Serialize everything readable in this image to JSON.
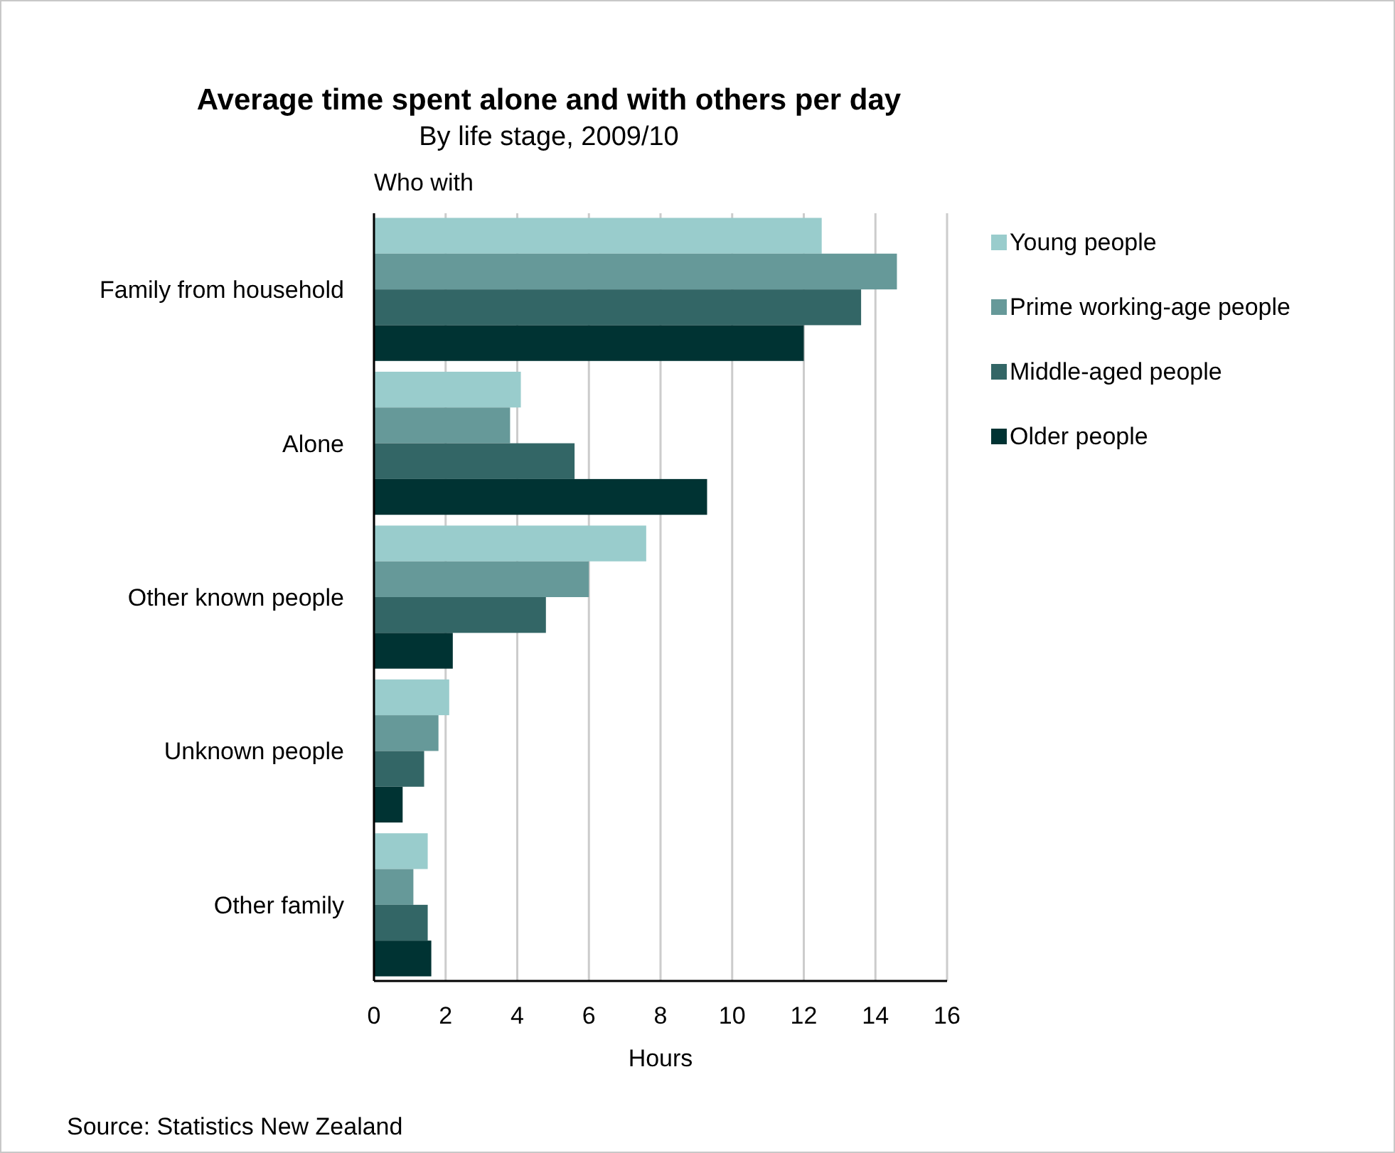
{
  "chart_data": {
    "type": "bar",
    "orientation": "horizontal",
    "title": "Average time spent alone and with others per day",
    "subtitle": "By life stage, 2009/10",
    "ylabel": "Who with",
    "xlabel": "Hours",
    "categories": [
      "Family from household",
      "Alone",
      "Other known people",
      "Unknown people",
      "Other family"
    ],
    "series": [
      {
        "name": "Young people",
        "color": "#99cccc",
        "values": [
          12.5,
          4.1,
          7.6,
          2.1,
          1.5
        ]
      },
      {
        "name": "Prime working-age people",
        "color": "#669999",
        "values": [
          14.6,
          3.8,
          6.0,
          1.8,
          1.1
        ]
      },
      {
        "name": "Middle-aged people",
        "color": "#336666",
        "values": [
          13.6,
          5.6,
          4.8,
          1.4,
          1.5
        ]
      },
      {
        "name": "Older people",
        "color": "#003333",
        "values": [
          12.0,
          9.3,
          2.2,
          0.8,
          1.6
        ]
      }
    ],
    "xlim": [
      0,
      16
    ],
    "xticks": [
      0,
      2,
      4,
      6,
      8,
      10,
      12,
      14,
      16
    ],
    "grid": "x",
    "legend": "right",
    "annotations": [
      "Source: Statistics New Zealand"
    ]
  }
}
